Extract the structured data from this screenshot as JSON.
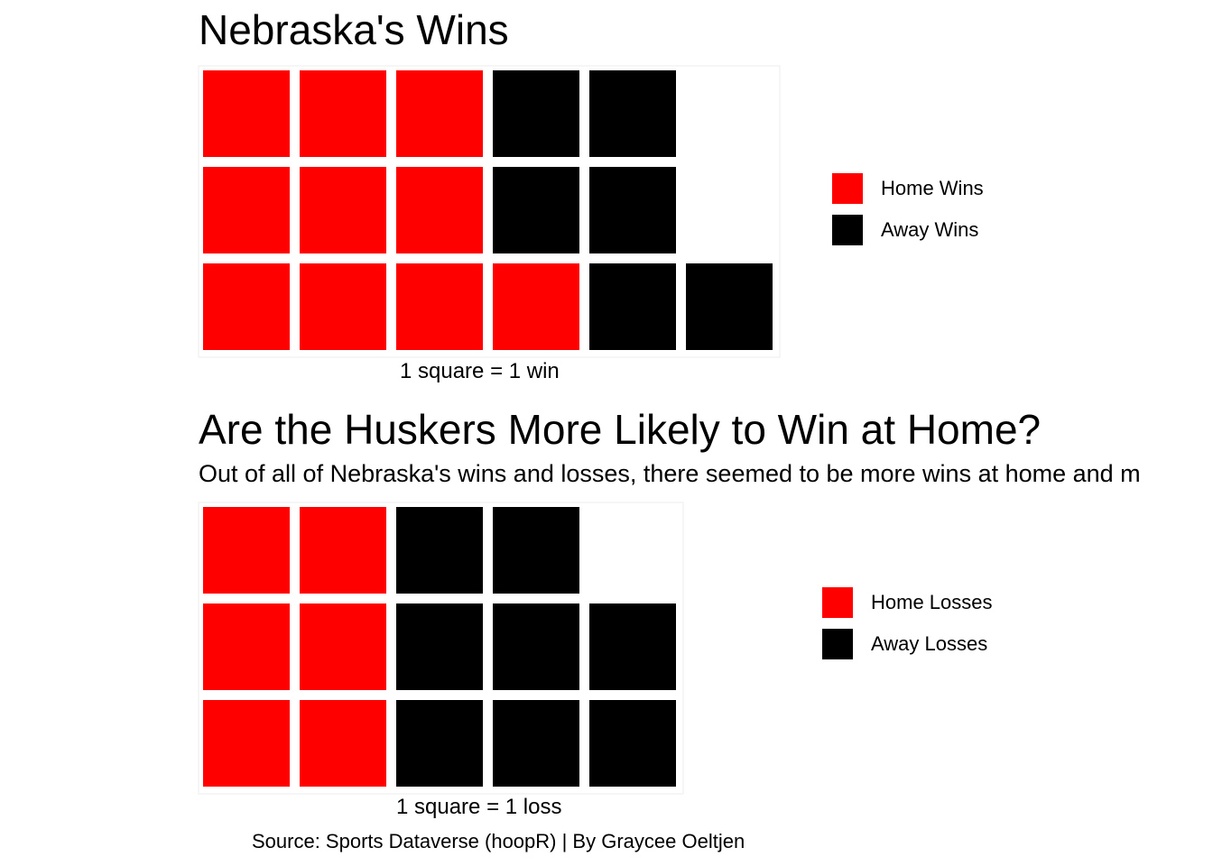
{
  "colors": {
    "home": "#ff0000",
    "away": "#000000",
    "tile_border": "#eeeeee"
  },
  "caption": "Source: Sports Dataverse (hoopR) | By Graycee Oeltjen",
  "chart_data": [
    {
      "type": "waffle",
      "title": "Nebraska's Wins",
      "unit_label": "1 square = 1 win",
      "rows": 3,
      "series": [
        {
          "name": "Home Wins",
          "value": 10,
          "color": "#ff0000"
        },
        {
          "name": "Away Wins",
          "value": 6,
          "color": "#000000"
        }
      ],
      "legend": "right"
    },
    {
      "type": "waffle",
      "title": "Are the Huskers More Likely to Win at Home?",
      "subtitle": "Out of all of Nebraska's wins and losses, there seemed to be more wins at home and m",
      "unit_label": "1 square = 1 loss",
      "rows": 3,
      "series": [
        {
          "name": "Home Losses",
          "value": 6,
          "color": "#ff0000"
        },
        {
          "name": "Away Losses",
          "value": 8,
          "color": "#000000"
        }
      ],
      "legend": "right"
    }
  ]
}
